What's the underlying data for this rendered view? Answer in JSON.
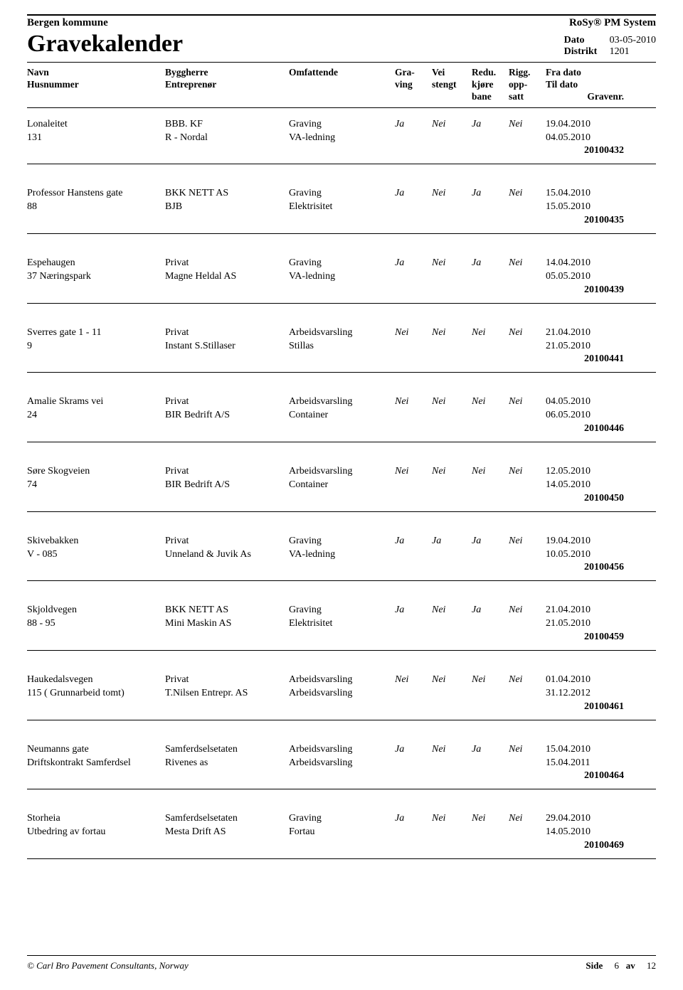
{
  "header": {
    "org": "Bergen kommune",
    "system": "RoSy®  PM System",
    "title": "Gravekalender",
    "date_label": "Dato",
    "date_value": "03-05-2010",
    "district_label": "Distrikt",
    "district_value": "1201"
  },
  "columns": {
    "navn": "Navn",
    "husnummer": "Husnummer",
    "byggherre": "Byggherre",
    "entreprenor": "Entreprenør",
    "omfattende": "Omfattende",
    "graving": "Gra-",
    "graving2": "ving",
    "vei": "Vei",
    "vei2": "stengt",
    "redu": "Redu.",
    "redu2": "kjøre",
    "redu3": "bane",
    "rigg": "Rigg.",
    "rigg2": "opp-",
    "rigg3": "satt",
    "fra": "Fra dato",
    "til": "Til dato",
    "gravenr": "Gravenr."
  },
  "rows": [
    {
      "navn": "Lonaleitet",
      "husnr": "131",
      "byggherre": "BBB. KF",
      "entreprenor": "R - Nordal",
      "omf1": "Graving",
      "omf2": "VA-ledning",
      "g": "Ja",
      "v": "Nei",
      "r": "Ja",
      "ri": "Nei",
      "fra": "19.04.2010",
      "til": "04.05.2010",
      "nr": "20100432"
    },
    {
      "navn": "Professor Hanstens gate",
      "husnr": "88",
      "byggherre": "BKK NETT AS",
      "entreprenor": "BJB",
      "omf1": "Graving",
      "omf2": "Elektrisitet",
      "g": "Ja",
      "v": "Nei",
      "r": "Ja",
      "ri": "Nei",
      "fra": "15.04.2010",
      "til": "15.05.2010",
      "nr": "20100435"
    },
    {
      "navn": "Espehaugen",
      "husnr": "37 Næringspark",
      "byggherre": "Privat",
      "entreprenor": "Magne Heldal AS",
      "omf1": "Graving",
      "omf2": "VA-ledning",
      "g": "Ja",
      "v": "Nei",
      "r": "Ja",
      "ri": "Nei",
      "fra": "14.04.2010",
      "til": "05.05.2010",
      "nr": "20100439"
    },
    {
      "navn": "Sverres gate 1 - 11",
      "husnr": "9",
      "byggherre": "Privat",
      "entreprenor": "Instant S.Stillaser",
      "omf1": "Arbeidsvarsling",
      "omf2": "Stillas",
      "g": "Nei",
      "v": "Nei",
      "r": "Nei",
      "ri": "Nei",
      "fra": "21.04.2010",
      "til": "21.05.2010",
      "nr": "20100441"
    },
    {
      "navn": "Amalie Skrams vei",
      "husnr": "24",
      "byggherre": "Privat",
      "entreprenor": "BIR Bedrift A/S",
      "omf1": "Arbeidsvarsling",
      "omf2": "Container",
      "g": "Nei",
      "v": "Nei",
      "r": "Nei",
      "ri": "Nei",
      "fra": "04.05.2010",
      "til": "06.05.2010",
      "nr": "20100446"
    },
    {
      "navn": "Søre Skogveien",
      "husnr": "74",
      "byggherre": "Privat",
      "entreprenor": "BIR Bedrift A/S",
      "omf1": "Arbeidsvarsling",
      "omf2": "Container",
      "g": "Nei",
      "v": "Nei",
      "r": "Nei",
      "ri": "Nei",
      "fra": "12.05.2010",
      "til": "14.05.2010",
      "nr": "20100450"
    },
    {
      "navn": "Skivebakken",
      "husnr": "V - 085",
      "byggherre": "Privat",
      "entreprenor": "Unneland & Juvik As",
      "omf1": "Graving",
      "omf2": "VA-ledning",
      "g": "Ja",
      "v": "Ja",
      "r": "Ja",
      "ri": "Nei",
      "fra": "19.04.2010",
      "til": "10.05.2010",
      "nr": "20100456"
    },
    {
      "navn": "Skjoldvegen",
      "husnr": "88 - 95",
      "byggherre": "BKK NETT AS",
      "entreprenor": "Mini Maskin AS",
      "omf1": "Graving",
      "omf2": "Elektrisitet",
      "g": "Ja",
      "v": "Nei",
      "r": "Ja",
      "ri": "Nei",
      "fra": "21.04.2010",
      "til": "21.05.2010",
      "nr": "20100459"
    },
    {
      "navn": "Haukedalsvegen",
      "husnr": "115 ( Grunnarbeid tomt)",
      "byggherre": "Privat",
      "entreprenor": "T.Nilsen Entrepr. AS",
      "omf1": "Arbeidsvarsling",
      "omf2": "Arbeidsvarsling",
      "g": "Nei",
      "v": "Nei",
      "r": "Nei",
      "ri": "Nei",
      "fra": "01.04.2010",
      "til": "31.12.2012",
      "nr": "20100461"
    },
    {
      "navn": "Neumanns gate",
      "husnr": "Driftskontrakt Samferdsel",
      "byggherre": "Samferdselsetaten",
      "entreprenor": "Rivenes as",
      "omf1": "Arbeidsvarsling",
      "omf2": "Arbeidsvarsling",
      "g": "Ja",
      "v": "Nei",
      "r": "Ja",
      "ri": "Nei",
      "fra": "15.04.2010",
      "til": "15.04.2011",
      "nr": "20100464"
    },
    {
      "navn": "Storheia",
      "husnr": "Utbedring av fortau",
      "byggherre": "Samferdselsetaten",
      "entreprenor": "Mesta  Drift AS",
      "omf1": "Graving",
      "omf2": "Fortau",
      "g": "Ja",
      "v": "Nei",
      "r": "Nei",
      "ri": "Nei",
      "fra": "29.04.2010",
      "til": "14.05.2010",
      "nr": "20100469"
    }
  ],
  "footer": {
    "left": "© Carl Bro Pavement Consultants, Norway",
    "side_label": "Side",
    "page": "6",
    "av": "av",
    "total": "12"
  }
}
